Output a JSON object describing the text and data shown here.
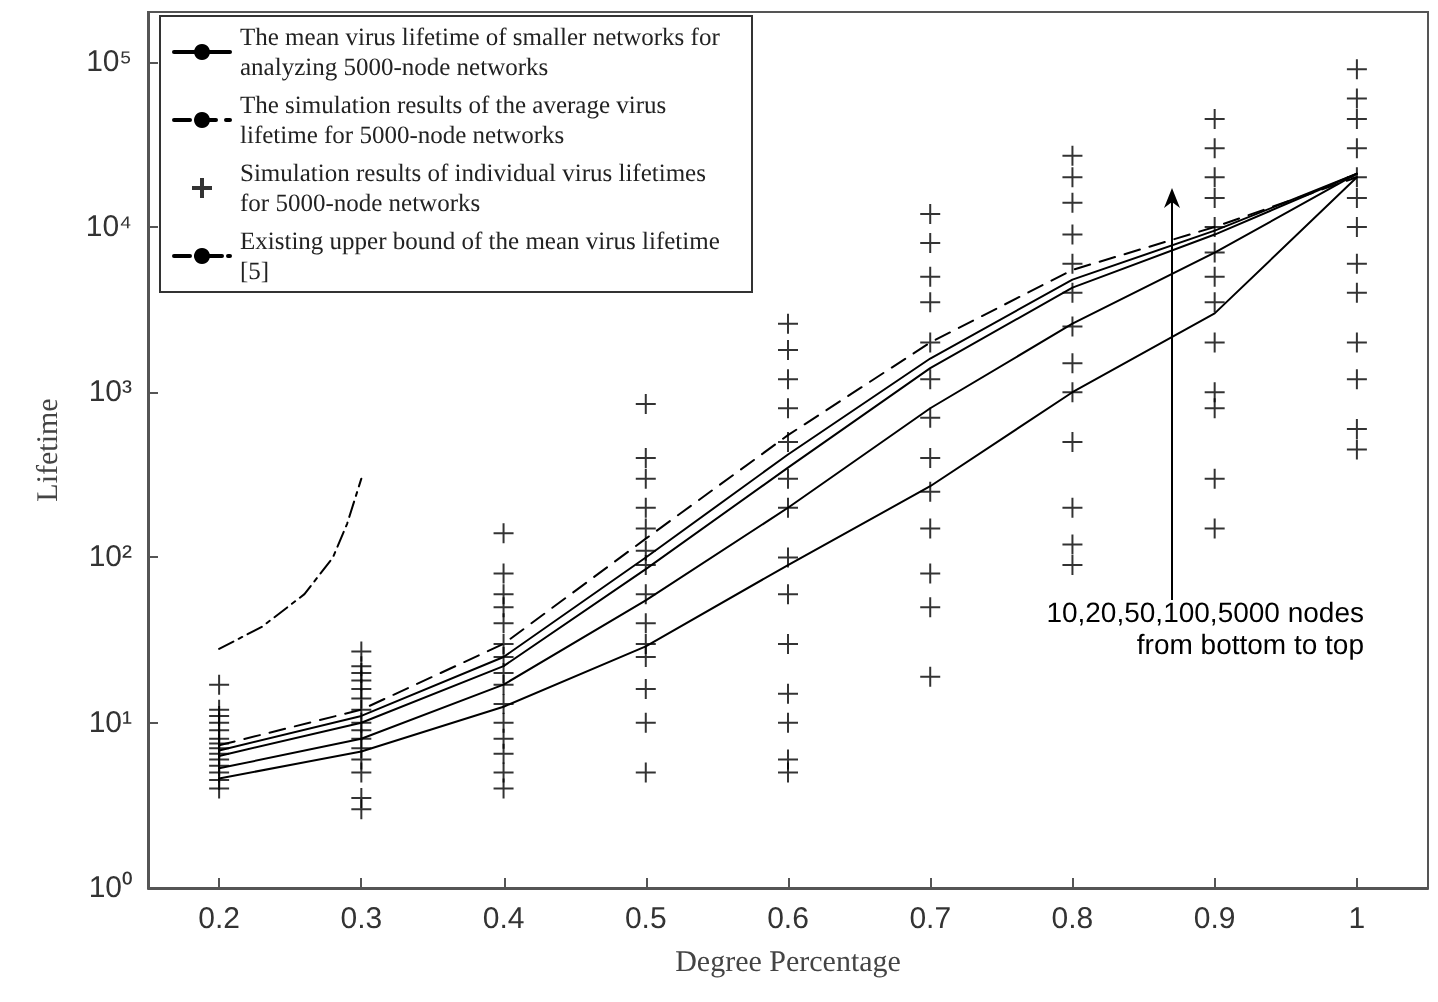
{
  "chart_data": {
    "type": "line",
    "xlabel": "Degree Percentage",
    "ylabel": "Lifetime",
    "log": "y",
    "xlim": [
      0.15,
      1.05
    ],
    "xticks": [
      0.2,
      0.3,
      0.4,
      0.5,
      0.6,
      0.7,
      0.8,
      0.9,
      1
    ],
    "ylim": [
      1,
      200000
    ],
    "yticks": [
      {
        "value": 1,
        "label": "10⁰"
      },
      {
        "value": 10,
        "label": "10¹"
      },
      {
        "value": 100,
        "label": "10²"
      },
      {
        "value": 1000,
        "label": "10³"
      },
      {
        "value": 10000,
        "label": "10⁴"
      },
      {
        "value": 100000,
        "label": "10⁵"
      }
    ],
    "grid": false,
    "legend": "top left",
    "x": [
      0.2,
      0.3,
      0.4,
      0.5,
      0.6,
      0.7,
      0.8,
      0.9,
      1
    ],
    "series": [
      {
        "name": "The mean virus lifetime of smaller networks for analyzing 5000-node networks",
        "color": "#000000",
        "line_style": "solid",
        "marker": "none",
        "values": [
          4.6,
          6.7,
          12.5,
          29,
          90,
          270,
          1000,
          3000,
          20000
        ]
      },
      {
        "color": "#000000",
        "line_style": "solid",
        "marker": "none",
        "values": [
          5.3,
          8,
          17,
          55,
          200,
          800,
          2600,
          7000,
          21000
        ]
      },
      {
        "color": "#000000",
        "line_style": "solid",
        "marker": "none",
        "values": [
          6.3,
          10,
          22,
          85,
          350,
          1400,
          4300,
          9000,
          21000
        ]
      },
      {
        "color": "#000000",
        "line_style": "solid",
        "marker": "none",
        "values": [
          6.8,
          11,
          25,
          100,
          420,
          1600,
          4800,
          9500,
          21000
        ]
      },
      {
        "name": "The simulation results of the average virus lifetime for 5000-node networks",
        "color": "#000000",
        "line_style": "dashed",
        "marker": "none",
        "values": [
          7.3,
          12,
          30,
          130,
          550,
          2000,
          5500,
          10000,
          20000
        ]
      },
      {
        "name": "Simulation results of individual virus lifetimes for 5000-node networks",
        "type": "scatter",
        "color": "#000000",
        "marker": "cross",
        "x": [
          0.2,
          0.2,
          0.2,
          0.2,
          0.2,
          0.2,
          0.2,
          0.2,
          0.2,
          0.2,
          0.2,
          0.2,
          0.2,
          0.2,
          0.3,
          0.3,
          0.3,
          0.3,
          0.3,
          0.3,
          0.3,
          0.3,
          0.3,
          0.3,
          0.3,
          0.3,
          0.3,
          0.3,
          0.3,
          0.4,
          0.4,
          0.4,
          0.4,
          0.4,
          0.4,
          0.4,
          0.4,
          0.4,
          0.4,
          0.4,
          0.4,
          0.4,
          0.4,
          0.4,
          0.5,
          0.5,
          0.5,
          0.5,
          0.5,
          0.5,
          0.5,
          0.5,
          0.5,
          0.5,
          0.5,
          0.5,
          0.5,
          0.5,
          0.6,
          0.6,
          0.6,
          0.6,
          0.6,
          0.6,
          0.6,
          0.6,
          0.6,
          0.6,
          0.6,
          0.6,
          0.6,
          0.6,
          0.7,
          0.7,
          0.7,
          0.7,
          0.7,
          0.7,
          0.7,
          0.7,
          0.7,
          0.7,
          0.7,
          0.7,
          0.7,
          0.8,
          0.8,
          0.8,
          0.8,
          0.8,
          0.8,
          0.8,
          0.8,
          0.8,
          0.8,
          0.8,
          0.8,
          0.8,
          0.9,
          0.9,
          0.9,
          0.9,
          0.9,
          0.9,
          0.9,
          0.9,
          0.9,
          0.9,
          0.9,
          0.9,
          0.9,
          1,
          1,
          1,
          1,
          1,
          1,
          1,
          1,
          1,
          1,
          1,
          1,
          1
        ],
        "values": [
          4,
          4.5,
          5,
          5.5,
          6,
          6.5,
          7,
          7.5,
          8,
          9,
          10,
          11,
          12,
          17,
          3,
          3.5,
          5,
          6,
          7,
          8,
          9,
          10,
          12,
          14,
          16,
          18,
          20,
          22,
          27,
          4,
          5,
          6.5,
          8,
          10,
          13,
          17,
          20,
          25,
          30,
          40,
          50,
          60,
          80,
          140,
          5,
          10,
          16,
          25,
          30,
          40,
          60,
          90,
          110,
          150,
          200,
          300,
          400,
          850,
          5,
          6,
          10,
          15,
          30,
          60,
          100,
          200,
          300,
          500,
          800,
          1200,
          1800,
          2600,
          19,
          50,
          80,
          150,
          250,
          400,
          700,
          1200,
          2000,
          3500,
          5000,
          8000,
          12000,
          90,
          120,
          200,
          500,
          1000,
          1500,
          2500,
          4000,
          6000,
          9000,
          14000,
          20000,
          27000,
          150,
          300,
          800,
          1000,
          2000,
          3500,
          5000,
          7000,
          10000,
          15000,
          20000,
          30000,
          45000,
          450,
          600,
          1200,
          2000,
          4000,
          6000,
          10000,
          15000,
          20000,
          30000,
          45000,
          60000,
          90000
        ]
      },
      {
        "name": "Existing upper bound of the mean virus lifetime [5]",
        "color": "#000000",
        "line_style": "dashdot",
        "marker": "none",
        "x": [
          0.2,
          0.23,
          0.26,
          0.28,
          0.29,
          0.3
        ],
        "values": [
          28,
          38,
          60,
          100,
          160,
          300
        ]
      }
    ],
    "annotations": [
      "10,20,50,100,5000 nodes\nfrom bottom to top"
    ]
  }
}
